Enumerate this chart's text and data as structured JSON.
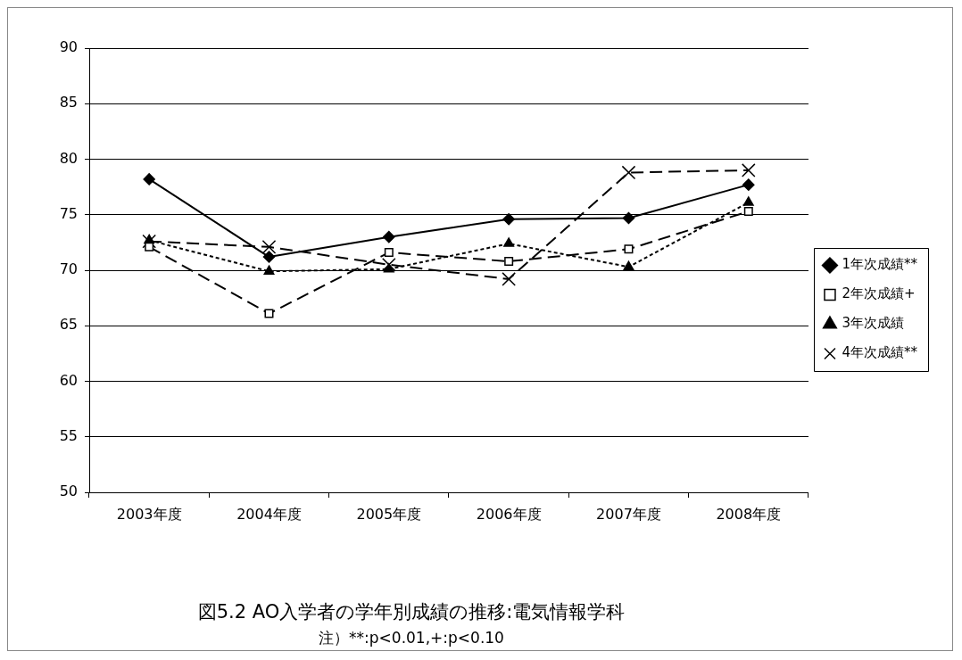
{
  "chart_data": {
    "type": "line",
    "title": "図5.2  AO入学者の学年別成績の推移:電気情報学科",
    "annotations": [
      "注）**:p<0.01,+:p<0.10"
    ],
    "categories": [
      "2003年度",
      "2004年度",
      "2005年度",
      "2006年度",
      "2007年度",
      "2008年度"
    ],
    "series": [
      {
        "name": "1年次成績**",
        "color": "#000000",
        "marker": "diamond",
        "line_style": "solid",
        "values": [
          78.2,
          71.2,
          73.0,
          74.6,
          74.7,
          77.7
        ]
      },
      {
        "name": "2年次成績+",
        "color": "#000000",
        "marker": "square",
        "line_style": "dashed",
        "values": [
          72.1,
          66.1,
          71.6,
          70.8,
          71.9,
          75.3
        ]
      },
      {
        "name": "3年次成績",
        "color": "#000000",
        "marker": "triangle",
        "line_style": "dotted",
        "values": [
          72.7,
          69.9,
          70.1,
          72.4,
          70.3,
          76.1
        ]
      },
      {
        "name": "4年次成績**",
        "color": "#000000",
        "marker": "cross",
        "line_style": "dashed",
        "values": [
          72.6,
          72.1,
          70.5,
          69.2,
          78.8,
          79.0
        ]
      }
    ],
    "ylim": [
      50,
      90
    ],
    "yticks": [
      50,
      55,
      60,
      65,
      70,
      75,
      80,
      85,
      90
    ],
    "grid": "y",
    "legend": "right"
  }
}
